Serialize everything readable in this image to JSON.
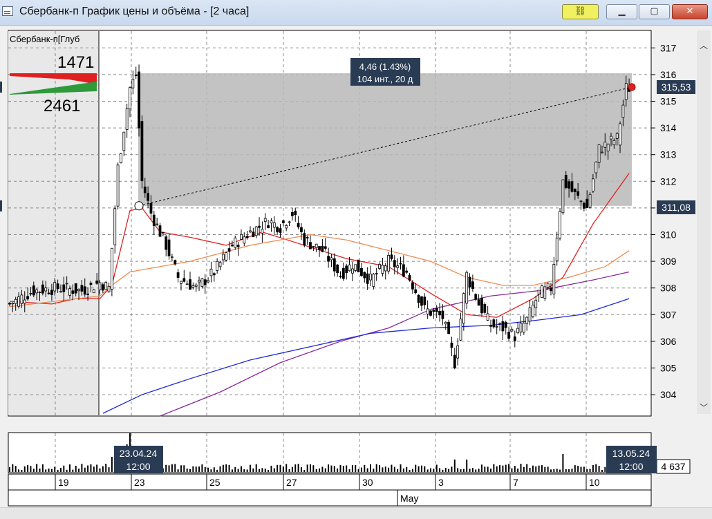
{
  "window": {
    "title": "Сбербанк-п График цены и объёма - [2 часа]"
  },
  "colors": {
    "accent": "#2a3b54",
    "ma_red": "#e02020",
    "ma_orange": "#f08a50",
    "ma_purple": "#8a2a9a",
    "ma_blue": "#1e2ad0"
  },
  "icons": {
    "link": "link-icon",
    "minimize": "minimize-icon",
    "maximize": "maximize-icon",
    "close": "close-icon"
  },
  "order_book": {
    "label": "Сбербанк-п[Глуб",
    "ask_volume": "1471",
    "bid_volume": "2461"
  },
  "measure_tool": {
    "line1": "4,46 (1.43%)",
    "line2": "104 инт., 20 д"
  },
  "price_tags": {
    "last": "315,53",
    "reference": "311,08"
  },
  "volume_readout": "4 637",
  "date_markers": [
    {
      "date": "23.04.24",
      "time": "12:00"
    },
    {
      "date": "13.05.24",
      "time": "12:00"
    }
  ],
  "date_axis": {
    "days": [
      "19",
      "23",
      "25",
      "27",
      "30",
      "3",
      "7",
      "10"
    ],
    "month": "May"
  },
  "chart_data": {
    "type": "candlestick",
    "timeframe": "2 hours",
    "y_axis": {
      "ticks": [
        304,
        305,
        306,
        307,
        308,
        309,
        310,
        311,
        312,
        313,
        314,
        315,
        316,
        317
      ],
      "range": [
        303.3,
        317.6
      ]
    },
    "x_axis": {
      "ticks": [
        "19",
        "23",
        "25",
        "27",
        "30",
        "3",
        "7",
        "10"
      ],
      "month_label": "May"
    },
    "grid": true,
    "measurement": {
      "from": 311.08,
      "to": 315.53,
      "change": "4,46 (1.43%)",
      "span": "104 инт., 20 д"
    },
    "moving_averages": [
      {
        "color": "red",
        "points": [
          [
            0,
            307.5
          ],
          [
            14,
            307.4
          ],
          [
            22,
            307.6
          ],
          [
            30,
            307.6
          ],
          [
            34,
            308.1
          ],
          [
            40,
            310.9
          ],
          [
            44,
            311.0
          ],
          [
            50,
            310.1
          ],
          [
            60,
            309.9
          ],
          [
            72,
            309.6
          ],
          [
            84,
            310.1
          ],
          [
            98,
            309.6
          ],
          [
            112,
            309.1
          ],
          [
            126,
            308.8
          ],
          [
            140,
            307.8
          ],
          [
            152,
            307.0
          ],
          [
            162,
            306.9
          ],
          [
            174,
            307.6
          ],
          [
            184,
            308.4
          ],
          [
            194,
            310.4
          ],
          [
            206,
            312.3
          ]
        ]
      },
      {
        "color": "orange",
        "points": [
          [
            0,
            307.3
          ],
          [
            30,
            307.7
          ],
          [
            34,
            308.1
          ],
          [
            40,
            308.6
          ],
          [
            60,
            309.0
          ],
          [
            80,
            309.6
          ],
          [
            100,
            310.0
          ],
          [
            112,
            309.8
          ],
          [
            126,
            309.4
          ],
          [
            140,
            309.0
          ],
          [
            152,
            308.4
          ],
          [
            164,
            308.1
          ],
          [
            174,
            308.1
          ],
          [
            186,
            308.4
          ],
          [
            198,
            308.8
          ],
          [
            206,
            309.4
          ]
        ]
      },
      {
        "color": "purple",
        "points": [
          [
            50,
            303.2
          ],
          [
            70,
            304.1
          ],
          [
            90,
            305.2
          ],
          [
            110,
            306.0
          ],
          [
            126,
            306.5
          ],
          [
            140,
            307.2
          ],
          [
            160,
            307.7
          ],
          [
            176,
            307.9
          ],
          [
            194,
            308.3
          ],
          [
            206,
            308.6
          ]
        ]
      },
      {
        "color": "blue",
        "points": [
          [
            31,
            303.3
          ],
          [
            44,
            304.0
          ],
          [
            60,
            304.6
          ],
          [
            80,
            305.3
          ],
          [
            100,
            305.8
          ],
          [
            120,
            306.3
          ],
          [
            140,
            306.5
          ],
          [
            160,
            306.6
          ],
          [
            176,
            306.8
          ],
          [
            190,
            307.0
          ],
          [
            206,
            307.6
          ]
        ]
      }
    ]
  }
}
